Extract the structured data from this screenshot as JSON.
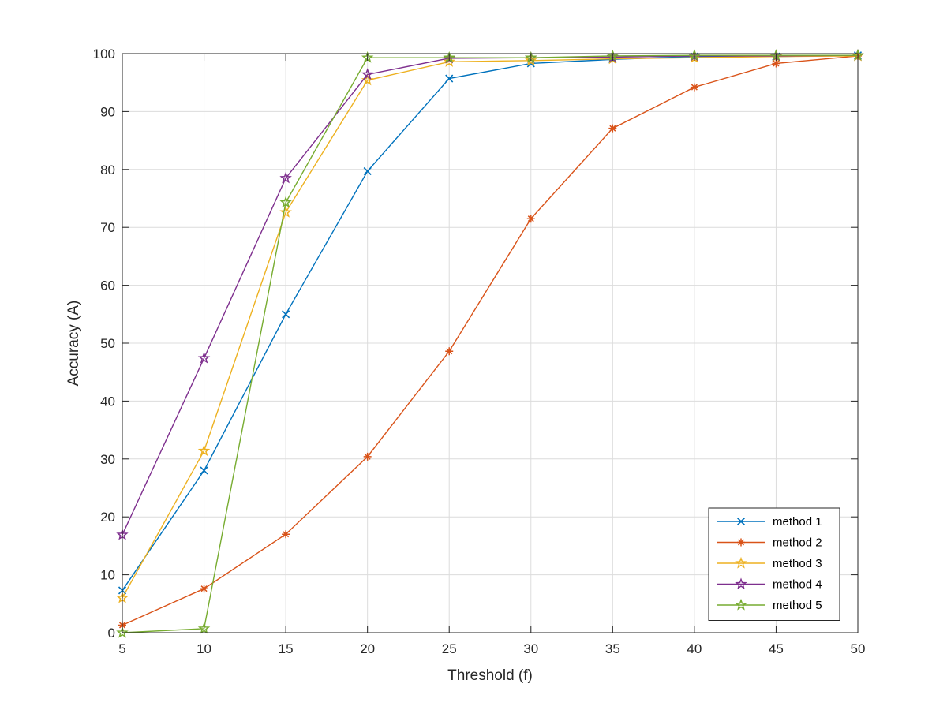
{
  "chart_data": {
    "type": "line",
    "title": "",
    "xlabel": "Threshold (f)",
    "ylabel": "Accuracy (A)",
    "xlim": [
      5,
      50
    ],
    "ylim": [
      0,
      100
    ],
    "xticks": [
      5,
      10,
      15,
      20,
      25,
      30,
      35,
      40,
      45,
      50
    ],
    "yticks": [
      0,
      10,
      20,
      30,
      40,
      50,
      60,
      70,
      80,
      90,
      100
    ],
    "grid": true,
    "legend_position": "bottom-right",
    "x": [
      5,
      10,
      15,
      20,
      25,
      30,
      35,
      40,
      45,
      50
    ],
    "series": [
      {
        "name": "method 1",
        "color": "#0072BD",
        "marker": "x",
        "values": [
          7.3,
          28.0,
          55.0,
          79.7,
          95.7,
          98.3,
          99.0,
          99.5,
          99.5,
          99.7
        ]
      },
      {
        "name": "method 2",
        "color": "#D95319",
        "marker": "asterisk",
        "values": [
          1.3,
          7.6,
          17.0,
          30.4,
          48.6,
          71.5,
          87.1,
          94.2,
          98.3,
          99.6
        ]
      },
      {
        "name": "method 3",
        "color": "#EDB120",
        "marker": "star",
        "values": [
          6.0,
          31.4,
          72.6,
          95.4,
          98.6,
          98.8,
          99.1,
          99.3,
          99.5,
          99.6
        ]
      },
      {
        "name": "method 4",
        "color": "#7E2F8E",
        "marker": "star",
        "values": [
          16.9,
          47.4,
          78.5,
          96.4,
          99.2,
          99.3,
          99.4,
          99.6,
          99.6,
          99.7
        ]
      },
      {
        "name": "method 5",
        "color": "#77AC30",
        "marker": "star",
        "values": [
          0.0,
          0.7,
          74.3,
          99.3,
          99.3,
          99.3,
          99.6,
          99.7,
          99.7,
          99.7
        ]
      }
    ]
  }
}
